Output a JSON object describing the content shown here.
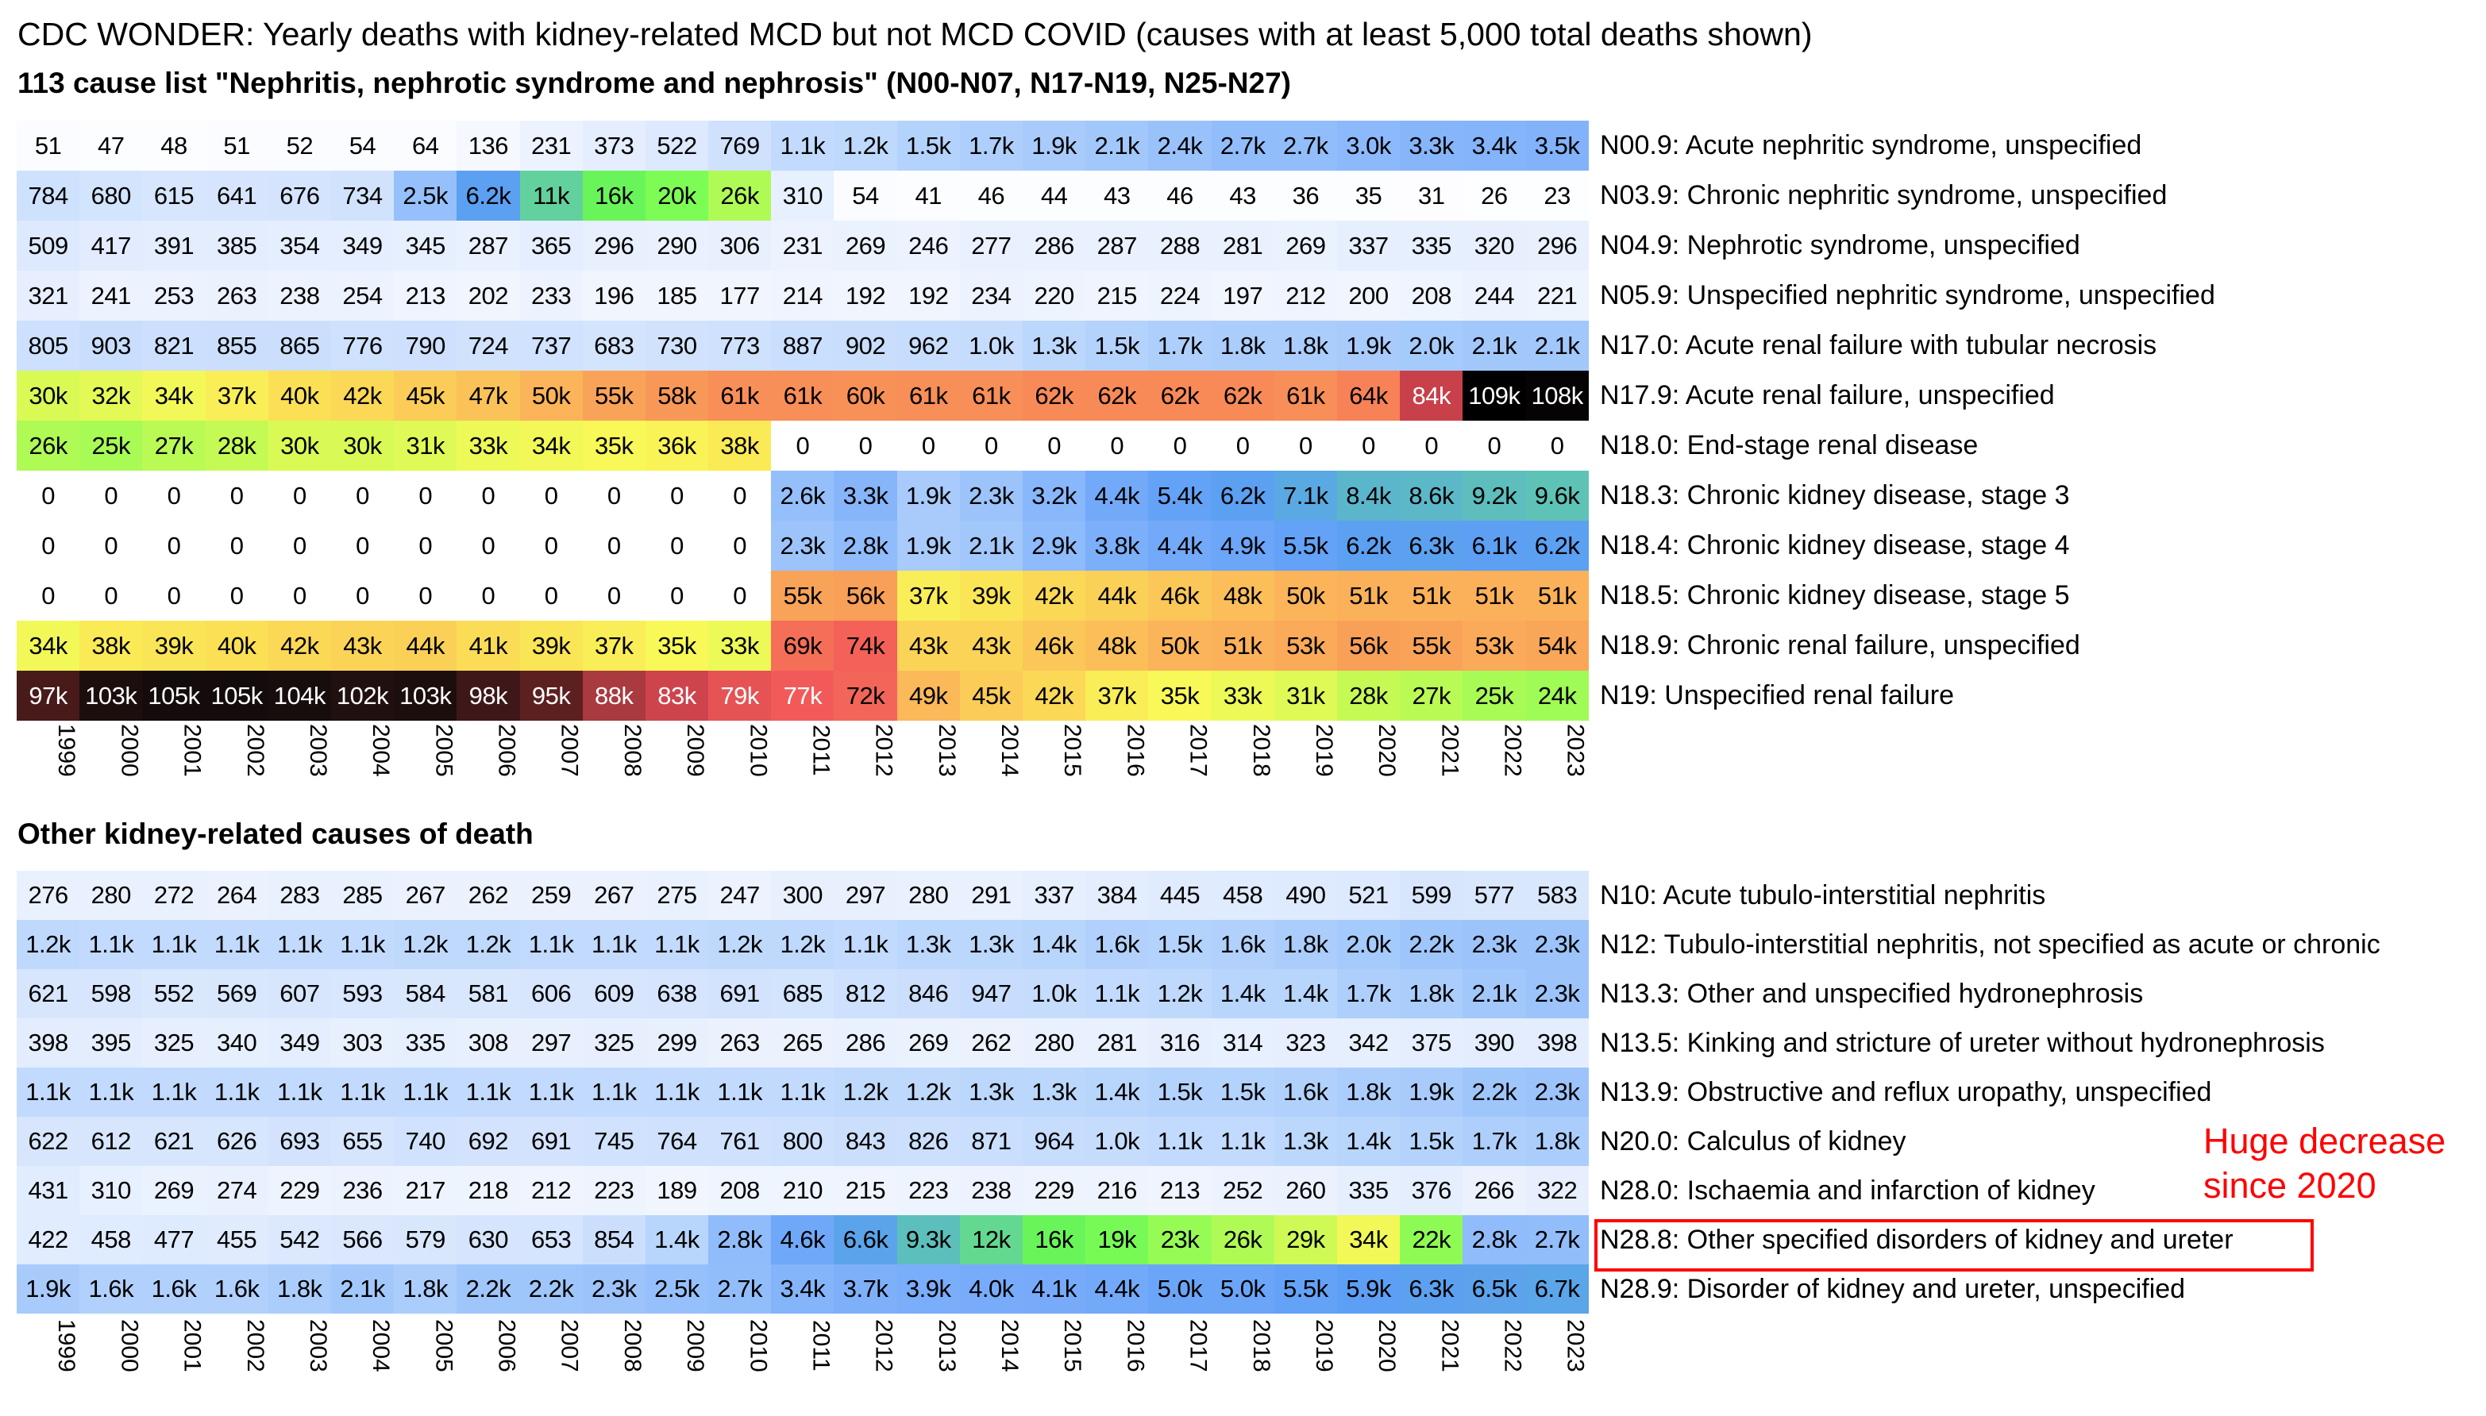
{
  "title": "CDC WONDER: Yearly deaths with kidney-related MCD but not MCD COVID (causes with at least 5,000 total deaths shown)",
  "subtitle": "113 cause list \"Nephritis, nephrotic syndrome and nephrosis\" (N00-N07, N17-N19, N25-N27)",
  "section2_title": "Other kidney-related causes of death",
  "annotation": {
    "line1": "Huge decrease",
    "line2": "since 2020",
    "color": "#ff0000"
  },
  "chart_data": [
    {
      "type": "heatmap",
      "title": "113 cause list \"Nephritis, nephrotic syndrome and nephrosis\" (N00-N07, N17-N19, N25-N27)",
      "x": [
        "1999",
        "2000",
        "2001",
        "2002",
        "2003",
        "2004",
        "2005",
        "2006",
        "2007",
        "2008",
        "2009",
        "2010",
        "2011",
        "2012",
        "2013",
        "2014",
        "2015",
        "2016",
        "2017",
        "2018",
        "2019",
        "2020",
        "2021",
        "2022",
        "2023"
      ],
      "rows": [
        {
          "label": "N00.9: Acute nephritic syndrome, unspecified",
          "values": [
            "51",
            "47",
            "48",
            "51",
            "52",
            "54",
            "64",
            "136",
            "231",
            "373",
            "522",
            "769",
            "1.1k",
            "1.2k",
            "1.5k",
            "1.7k",
            "1.9k",
            "2.1k",
            "2.4k",
            "2.7k",
            "2.7k",
            "3.0k",
            "3.3k",
            "3.4k",
            "3.5k"
          ]
        },
        {
          "label": "N03.9: Chronic nephritic syndrome, unspecified",
          "values": [
            "784",
            "680",
            "615",
            "641",
            "676",
            "734",
            "2.5k",
            "6.2k",
            "11k",
            "16k",
            "20k",
            "26k",
            "310",
            "54",
            "41",
            "46",
            "44",
            "43",
            "46",
            "43",
            "36",
            "35",
            "31",
            "26",
            "23"
          ]
        },
        {
          "label": "N04.9: Nephrotic syndrome, unspecified",
          "values": [
            "509",
            "417",
            "391",
            "385",
            "354",
            "349",
            "345",
            "287",
            "365",
            "296",
            "290",
            "306",
            "231",
            "269",
            "246",
            "277",
            "286",
            "287",
            "288",
            "281",
            "269",
            "337",
            "335",
            "320",
            "296"
          ]
        },
        {
          "label": "N05.9: Unspecified nephritic syndrome, unspecified",
          "values": [
            "321",
            "241",
            "253",
            "263",
            "238",
            "254",
            "213",
            "202",
            "233",
            "196",
            "185",
            "177",
            "214",
            "192",
            "192",
            "234",
            "220",
            "215",
            "224",
            "197",
            "212",
            "200",
            "208",
            "244",
            "221"
          ]
        },
        {
          "label": "N17.0: Acute renal failure with tubular necrosis",
          "values": [
            "805",
            "903",
            "821",
            "855",
            "865",
            "776",
            "790",
            "724",
            "737",
            "683",
            "730",
            "773",
            "887",
            "902",
            "962",
            "1.0k",
            "1.3k",
            "1.5k",
            "1.7k",
            "1.8k",
            "1.8k",
            "1.9k",
            "2.0k",
            "2.1k",
            "2.1k"
          ]
        },
        {
          "label": "N17.9: Acute renal failure, unspecified",
          "values": [
            "30k",
            "32k",
            "34k",
            "37k",
            "40k",
            "42k",
            "45k",
            "47k",
            "50k",
            "55k",
            "58k",
            "61k",
            "61k",
            "60k",
            "61k",
            "61k",
            "62k",
            "62k",
            "62k",
            "62k",
            "61k",
            "64k",
            "84k",
            "109k",
            "108k"
          ]
        },
        {
          "label": "N18.0: End-stage renal disease",
          "values": [
            "26k",
            "25k",
            "27k",
            "28k",
            "30k",
            "30k",
            "31k",
            "33k",
            "34k",
            "35k",
            "36k",
            "38k",
            "0",
            "0",
            "0",
            "0",
            "0",
            "0",
            "0",
            "0",
            "0",
            "0",
            "0",
            "0",
            "0"
          ]
        },
        {
          "label": "N18.3: Chronic kidney disease, stage 3",
          "values": [
            "0",
            "0",
            "0",
            "0",
            "0",
            "0",
            "0",
            "0",
            "0",
            "0",
            "0",
            "0",
            "2.6k",
            "3.3k",
            "1.9k",
            "2.3k",
            "3.2k",
            "4.4k",
            "5.4k",
            "6.2k",
            "7.1k",
            "8.4k",
            "8.6k",
            "9.2k",
            "9.6k"
          ]
        },
        {
          "label": "N18.4: Chronic kidney disease, stage 4",
          "values": [
            "0",
            "0",
            "0",
            "0",
            "0",
            "0",
            "0",
            "0",
            "0",
            "0",
            "0",
            "0",
            "2.3k",
            "2.8k",
            "1.9k",
            "2.1k",
            "2.9k",
            "3.8k",
            "4.4k",
            "4.9k",
            "5.5k",
            "6.2k",
            "6.3k",
            "6.1k",
            "6.2k"
          ]
        },
        {
          "label": "N18.5: Chronic kidney disease, stage 5",
          "values": [
            "0",
            "0",
            "0",
            "0",
            "0",
            "0",
            "0",
            "0",
            "0",
            "0",
            "0",
            "0",
            "55k",
            "56k",
            "37k",
            "39k",
            "42k",
            "44k",
            "46k",
            "48k",
            "50k",
            "51k",
            "51k",
            "51k",
            "51k"
          ]
        },
        {
          "label": "N18.9: Chronic renal failure, unspecified",
          "values": [
            "34k",
            "38k",
            "39k",
            "40k",
            "42k",
            "43k",
            "44k",
            "41k",
            "39k",
            "37k",
            "35k",
            "33k",
            "69k",
            "74k",
            "43k",
            "43k",
            "46k",
            "48k",
            "50k",
            "51k",
            "53k",
            "56k",
            "55k",
            "53k",
            "54k"
          ]
        },
        {
          "label": "N19: Unspecified renal failure",
          "values": [
            "97k",
            "103k",
            "105k",
            "105k",
            "104k",
            "102k",
            "103k",
            "98k",
            "95k",
            "88k",
            "83k",
            "79k",
            "77k",
            "72k",
            "49k",
            "45k",
            "42k",
            "37k",
            "35k",
            "33k",
            "31k",
            "28k",
            "27k",
            "25k",
            "24k"
          ]
        }
      ]
    },
    {
      "type": "heatmap",
      "title": "Other kidney-related causes of death",
      "x": [
        "1999",
        "2000",
        "2001",
        "2002",
        "2003",
        "2004",
        "2005",
        "2006",
        "2007",
        "2008",
        "2009",
        "2010",
        "2011",
        "2012",
        "2013",
        "2014",
        "2015",
        "2016",
        "2017",
        "2018",
        "2019",
        "2020",
        "2021",
        "2022",
        "2023"
      ],
      "rows": [
        {
          "label": "N10: Acute tubulo-interstitial nephritis",
          "values": [
            "276",
            "280",
            "272",
            "264",
            "283",
            "285",
            "267",
            "262",
            "259",
            "267",
            "275",
            "247",
            "300",
            "297",
            "280",
            "291",
            "337",
            "384",
            "445",
            "458",
            "490",
            "521",
            "599",
            "577",
            "583"
          ]
        },
        {
          "label": "N12: Tubulo-interstitial nephritis, not specified as acute or chronic",
          "values": [
            "1.2k",
            "1.1k",
            "1.1k",
            "1.1k",
            "1.1k",
            "1.1k",
            "1.2k",
            "1.2k",
            "1.1k",
            "1.1k",
            "1.1k",
            "1.2k",
            "1.2k",
            "1.1k",
            "1.3k",
            "1.3k",
            "1.4k",
            "1.6k",
            "1.5k",
            "1.6k",
            "1.8k",
            "2.0k",
            "2.2k",
            "2.3k",
            "2.3k"
          ]
        },
        {
          "label": "N13.3: Other and unspecified hydronephrosis",
          "values": [
            "621",
            "598",
            "552",
            "569",
            "607",
            "593",
            "584",
            "581",
            "606",
            "609",
            "638",
            "691",
            "685",
            "812",
            "846",
            "947",
            "1.0k",
            "1.1k",
            "1.2k",
            "1.4k",
            "1.4k",
            "1.7k",
            "1.8k",
            "2.1k",
            "2.3k"
          ]
        },
        {
          "label": "N13.5: Kinking and stricture of ureter without hydronephrosis",
          "values": [
            "398",
            "395",
            "325",
            "340",
            "349",
            "303",
            "335",
            "308",
            "297",
            "325",
            "299",
            "263",
            "265",
            "286",
            "269",
            "262",
            "280",
            "281",
            "316",
            "314",
            "323",
            "342",
            "375",
            "390",
            "398"
          ]
        },
        {
          "label": "N13.9: Obstructive and reflux uropathy, unspecified",
          "values": [
            "1.1k",
            "1.1k",
            "1.1k",
            "1.1k",
            "1.1k",
            "1.1k",
            "1.1k",
            "1.1k",
            "1.1k",
            "1.1k",
            "1.1k",
            "1.1k",
            "1.1k",
            "1.2k",
            "1.2k",
            "1.3k",
            "1.3k",
            "1.4k",
            "1.5k",
            "1.5k",
            "1.6k",
            "1.8k",
            "1.9k",
            "2.2k",
            "2.3k"
          ]
        },
        {
          "label": "N20.0: Calculus of kidney",
          "values": [
            "622",
            "612",
            "621",
            "626",
            "693",
            "655",
            "740",
            "692",
            "691",
            "745",
            "764",
            "761",
            "800",
            "843",
            "826",
            "871",
            "964",
            "1.0k",
            "1.1k",
            "1.1k",
            "1.3k",
            "1.4k",
            "1.5k",
            "1.7k",
            "1.8k"
          ]
        },
        {
          "label": "N28.0: Ischaemia and infarction of kidney",
          "values": [
            "431",
            "310",
            "269",
            "274",
            "229",
            "236",
            "217",
            "218",
            "212",
            "223",
            "189",
            "208",
            "210",
            "215",
            "223",
            "238",
            "229",
            "216",
            "213",
            "252",
            "260",
            "335",
            "376",
            "266",
            "322"
          ]
        },
        {
          "label": "N28.8: Other specified disorders of kidney and ureter",
          "values": [
            "422",
            "458",
            "477",
            "455",
            "542",
            "566",
            "579",
            "630",
            "653",
            "854",
            "1.4k",
            "2.8k",
            "4.6k",
            "6.6k",
            "9.3k",
            "12k",
            "16k",
            "19k",
            "23k",
            "26k",
            "29k",
            "34k",
            "22k",
            "2.8k",
            "2.7k"
          ],
          "highlighted": true
        },
        {
          "label": "N28.9: Disorder of kidney and ureter, unspecified",
          "values": [
            "1.9k",
            "1.6k",
            "1.6k",
            "1.6k",
            "1.8k",
            "2.1k",
            "1.8k",
            "2.2k",
            "2.2k",
            "2.3k",
            "2.5k",
            "2.7k",
            "3.4k",
            "3.7k",
            "3.9k",
            "4.0k",
            "4.1k",
            "4.4k",
            "5.0k",
            "5.0k",
            "5.5k",
            "5.9k",
            "6.3k",
            "6.5k",
            "6.7k"
          ]
        }
      ]
    }
  ]
}
